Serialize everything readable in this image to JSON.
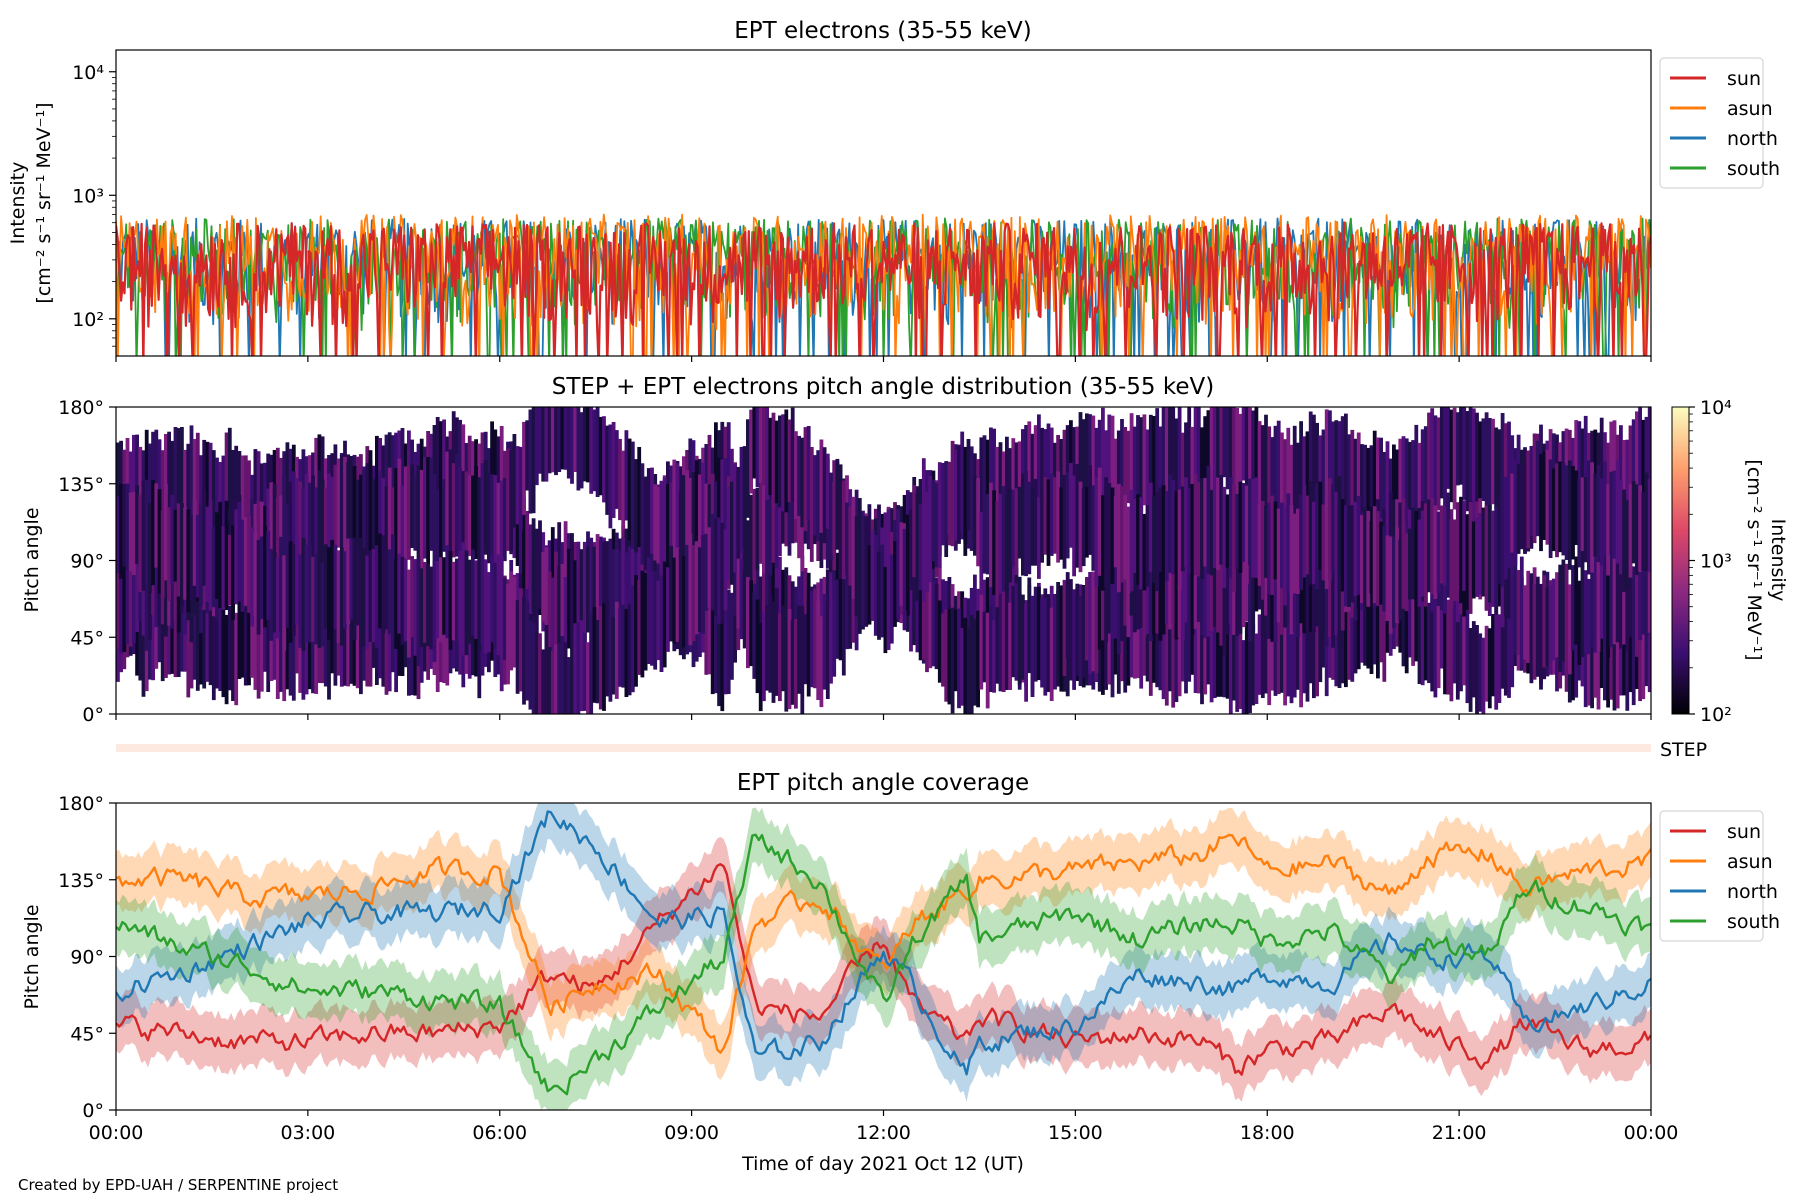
{
  "footer": "Created by EPD-UAH / SERPENTINE project",
  "colors": {
    "sun": "#d62728",
    "asun": "#ff7f0e",
    "north": "#1f77b4",
    "south": "#2ca02c",
    "step": "#fde9e0"
  },
  "chart_data": [
    {
      "type": "line",
      "title": "EPT electrons (35-55 keV)",
      "ylabel": [
        "Intensity",
        "[cm⁻² s⁻¹ sr⁻¹ MeV⁻¹]"
      ],
      "yscale": "log",
      "ylim": [
        50,
        15000
      ],
      "yticks": [
        {
          "value": 100,
          "label": "10²"
        },
        {
          "value": 1000,
          "label": "10³"
        },
        {
          "value": 10000,
          "label": "10⁴"
        }
      ],
      "xlim": [
        0,
        24
      ],
      "legend": "outside-right",
      "series": [
        {
          "name": "sun",
          "typical": [
            80,
            600
          ]
        },
        {
          "name": "asun",
          "typical": [
            80,
            700
          ]
        },
        {
          "name": "north",
          "typical": [
            80,
            650
          ]
        },
        {
          "name": "south",
          "typical": [
            80,
            650
          ]
        }
      ]
    },
    {
      "type": "heatmap",
      "title": "STEP + EPT electrons pitch angle distribution (35-55 keV)",
      "ylabel": "Pitch angle",
      "ylim": [
        0,
        180
      ],
      "yticks": [
        {
          "value": 0,
          "label": "0°"
        },
        {
          "value": 45,
          "label": "45°"
        },
        {
          "value": 90,
          "label": "90°"
        },
        {
          "value": 135,
          "label": "135°"
        },
        {
          "value": 180,
          "label": "180°"
        }
      ],
      "xlim": [
        0,
        24
      ],
      "colorbar": {
        "scale": "log",
        "range": [
          100,
          10000
        ],
        "ticks": [
          {
            "value": 100,
            "label": "10²"
          },
          {
            "value": 1000,
            "label": "10³"
          },
          {
            "value": 10000,
            "label": "10⁴"
          }
        ],
        "label": [
          "Intensity",
          "[cm⁻² s⁻¹ sr⁻¹ MeV⁻¹]"
        ]
      }
    },
    {
      "type": "heatmap",
      "label": "STEP",
      "xlim": [
        0,
        24
      ]
    },
    {
      "type": "line",
      "title": "EPT pitch angle coverage",
      "ylabel": "Pitch angle",
      "ylim": [
        0,
        180
      ],
      "yticks": [
        {
          "value": 0,
          "label": "0°"
        },
        {
          "value": 45,
          "label": "45°"
        },
        {
          "value": 90,
          "label": "90°"
        },
        {
          "value": 135,
          "label": "135°"
        },
        {
          "value": 180,
          "label": "180°"
        }
      ],
      "xlim": [
        0,
        24
      ],
      "xticks": [
        {
          "value": 0,
          "label": "00:00"
        },
        {
          "value": 3,
          "label": "03:00"
        },
        {
          "value": 6,
          "label": "06:00"
        },
        {
          "value": 9,
          "label": "09:00"
        },
        {
          "value": 12,
          "label": "12:00"
        },
        {
          "value": 15,
          "label": "15:00"
        },
        {
          "value": 18,
          "label": "18:00"
        },
        {
          "value": 21,
          "label": "21:00"
        },
        {
          "value": 24,
          "label": "00:00"
        }
      ],
      "xlabel": "Time of day 2021 Oct 12 (UT)",
      "legend": "outside-right",
      "series": [
        {
          "name": "sun",
          "x": [
            0,
            1,
            2,
            3,
            4,
            5,
            6,
            6.8,
            7.5,
            8.5,
            9.5,
            10,
            11,
            12,
            12.5,
            13.3,
            13.5,
            15,
            16,
            17,
            17.5,
            18,
            19,
            20,
            20.5,
            21.5,
            22,
            23,
            24
          ],
          "y": [
            50,
            45,
            40,
            40,
            45,
            45,
            50,
            80,
            70,
            110,
            145,
            60,
            55,
            100,
            60,
            40,
            55,
            40,
            45,
            40,
            25,
            35,
            40,
            60,
            45,
            30,
            50,
            35,
            40
          ]
        },
        {
          "name": "asun",
          "x": [
            0,
            1,
            2,
            3,
            4,
            5,
            6,
            6.8,
            7.5,
            8.5,
            9.5,
            10,
            11,
            12,
            12.5,
            13.3,
            13.5,
            15,
            16,
            17,
            17.5,
            18,
            19,
            20,
            20.5,
            21.5,
            22,
            23,
            24
          ],
          "y": [
            135,
            135,
            125,
            125,
            130,
            140,
            140,
            60,
            75,
            80,
            35,
            110,
            125,
            80,
            110,
            130,
            135,
            140,
            145,
            150,
            160,
            140,
            145,
            125,
            150,
            150,
            130,
            140,
            145
          ]
        },
        {
          "name": "north",
          "x": [
            0,
            1,
            2,
            3,
            4,
            5,
            6,
            6.8,
            7.5,
            8.5,
            9.5,
            10,
            11,
            12,
            12.5,
            13.3,
            13.5,
            15,
            16,
            17,
            17.5,
            18,
            19,
            20,
            20.5,
            21.5,
            22,
            23,
            24
          ],
          "y": [
            70,
            80,
            95,
            110,
            115,
            115,
            120,
            175,
            155,
            110,
            115,
            30,
            40,
            95,
            70,
            20,
            40,
            50,
            80,
            75,
            70,
            80,
            75,
            100,
            90,
            90,
            50,
            60,
            75
          ]
        },
        {
          "name": "south",
          "x": [
            0,
            1,
            2,
            3,
            4,
            5,
            6,
            6.8,
            7.5,
            8.5,
            9.5,
            10,
            11,
            12,
            12.5,
            13.3,
            13.5,
            15,
            16,
            17,
            17.5,
            18,
            19,
            20,
            20.5,
            21.5,
            22,
            23,
            24
          ],
          "y": [
            110,
            95,
            85,
            70,
            70,
            65,
            60,
            10,
            30,
            60,
            90,
            160,
            135,
            60,
            100,
            135,
            100,
            115,
            100,
            110,
            110,
            100,
            105,
            75,
            100,
            90,
            130,
            120,
            105
          ]
        }
      ]
    }
  ]
}
